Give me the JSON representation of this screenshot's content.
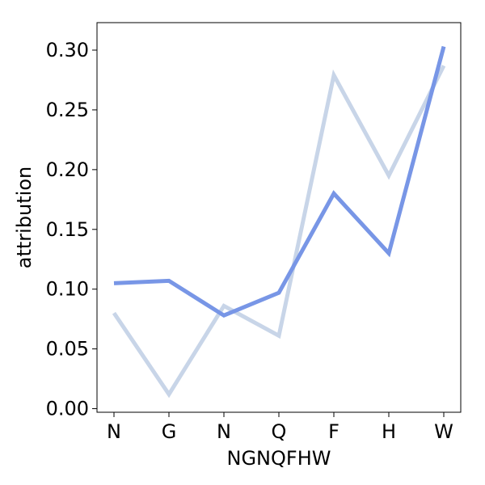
{
  "chart_data": {
    "type": "line",
    "title": "",
    "xlabel": "NGNQFHW",
    "ylabel": "attribution",
    "categories": [
      "N",
      "G",
      "N",
      "Q",
      "F",
      "H",
      "W"
    ],
    "ylim": [
      -0.003,
      0.323
    ],
    "yticks": [
      0.0,
      0.05,
      0.1,
      0.15,
      0.2,
      0.25,
      0.3
    ],
    "ytick_labels": [
      "0.00",
      "0.05",
      "0.10",
      "0.15",
      "0.20",
      "0.25",
      "0.30"
    ],
    "grid": false,
    "legend": "none",
    "series": [
      {
        "color": "#c8d5e8",
        "values": [
          0.08,
          0.012,
          0.086,
          0.061,
          0.279,
          0.195,
          0.287
        ]
      },
      {
        "color": "#7896e6",
        "values": [
          0.105,
          0.107,
          0.078,
          0.097,
          0.18,
          0.13,
          0.303
        ]
      }
    ]
  }
}
